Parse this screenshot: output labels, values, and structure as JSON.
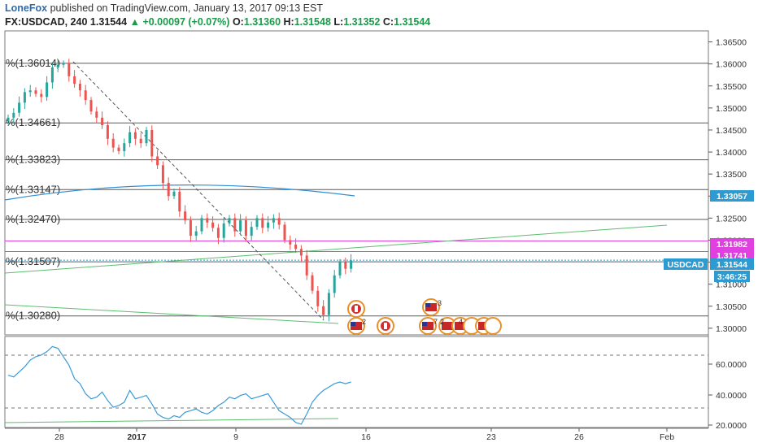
{
  "header": {
    "author": "LoneFox",
    "published": "published on TradingView.com, January 13, 2017 09:13 EST"
  },
  "ohlc": {
    "symbol": "FX:USDCAD, 240",
    "last": "1.31544",
    "change": "+0.00097 (+0.07%)",
    "open_label": "O:",
    "open": "1.31360",
    "high_label": "H:",
    "high": "1.31548",
    "low_label": "L:",
    "low": "1.31352",
    "close_label": "C:",
    "close": "1.31544"
  },
  "price_axis": {
    "ticks": [
      "1.36500",
      "1.36000",
      "1.35500",
      "1.35000",
      "1.34500",
      "1.34000",
      "1.33500",
      "1.33000",
      "1.32500",
      "1.32000",
      "1.31500",
      "1.31000",
      "1.30500",
      "1.30000"
    ]
  },
  "tags": {
    "ma": "1.33057",
    "pink_top": "1.31982",
    "pink_bottom": "1.31741",
    "symbol": "USDCAD",
    "price": "1.31544",
    "countdown": "3:46:25"
  },
  "fib_labels": [
    "%(1.36014)",
    "%(1.34661)",
    "%(1.33823)",
    "%(1.33147)",
    "%(1.32470)",
    "%(1.31507)",
    "%(1.30280)"
  ],
  "rsi_axis": {
    "ticks": [
      "60.0000",
      "40.0000",
      "20.0000"
    ]
  },
  "time_axis": {
    "labels": [
      "28",
      "2017",
      "9",
      "16",
      "23",
      "26",
      "Feb"
    ]
  },
  "events": {
    "counts": [
      "3",
      "2",
      "7",
      "2",
      "4",
      "4"
    ]
  },
  "colors": {
    "up": "#26a69a",
    "down": "#ef5350",
    "ma": "#2d8fd5",
    "trend": "#5cbd6f",
    "fib": "#5a5a5a",
    "pink": "#e040e0",
    "price_tag": "#2d9ad1",
    "rsi": "#3a9ad9"
  },
  "chart_data": {
    "type": "candlestick",
    "x_range": [
      "2016-12-21",
      "2017-02-03"
    ],
    "ylim": [
      1.2985,
      1.3675
    ],
    "fib_levels": [
      1.36014,
      1.34661,
      1.33823,
      1.33147,
      1.3247,
      1.31507,
      1.3028
    ],
    "horizontal_lines": [
      1.31982,
      1.31741
    ],
    "series": [
      {
        "name": "USDCAD",
        "values": [
          1.3478,
          1.3489,
          1.3512,
          1.3536,
          1.354,
          1.3532,
          1.3525,
          1.3558,
          1.3592,
          1.3598,
          1.3601,
          1.3572,
          1.3555,
          1.354,
          1.3518,
          1.3492,
          1.3478,
          1.3461,
          1.343,
          1.341,
          1.3402,
          1.342,
          1.3445,
          1.343,
          1.342,
          1.345,
          1.339,
          1.337,
          1.333,
          1.33,
          1.331,
          1.3265,
          1.3245,
          1.321,
          1.322,
          1.325,
          1.324,
          1.3228,
          1.3205,
          1.3238,
          1.325,
          1.322,
          1.3245,
          1.321,
          1.323,
          1.325,
          1.3228,
          1.324,
          1.325,
          1.3235,
          1.32,
          1.319,
          1.318,
          1.3165,
          1.312,
          1.3085,
          1.305,
          1.303,
          1.308,
          1.312,
          1.315,
          1.3135,
          1.3154
        ]
      }
    ],
    "rsi": {
      "values": [
        49,
        48,
        51,
        54,
        58,
        60,
        61,
        63,
        66,
        65,
        60,
        55,
        47,
        44,
        38,
        35,
        36,
        39,
        34,
        30,
        31,
        33,
        40,
        35,
        36,
        37,
        32,
        26,
        24,
        23,
        25,
        24,
        27,
        28,
        29,
        27,
        26,
        28,
        31,
        33,
        36,
        35,
        37,
        38,
        35,
        36,
        37,
        38,
        33,
        28,
        26,
        24,
        21,
        20,
        26,
        33,
        37,
        40,
        42,
        44,
        45,
        44,
        45
      ],
      "ylim": [
        18,
        72
      ],
      "levels": [
        30,
        70
      ]
    }
  }
}
